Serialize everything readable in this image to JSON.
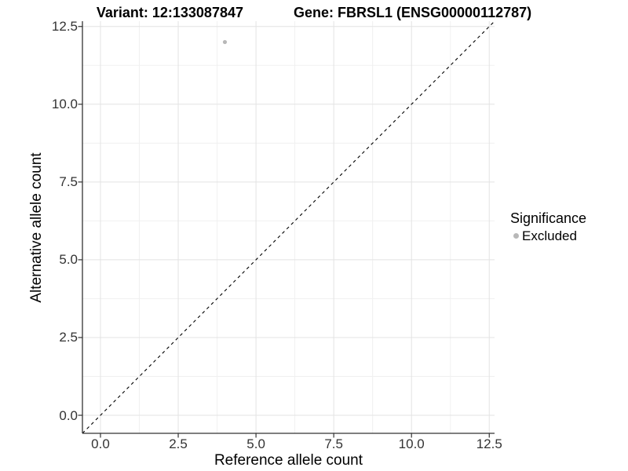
{
  "chart_data": {
    "type": "scatter",
    "title_left": "Variant: 12:133087847",
    "title_right": "Gene: FBRSL1 (ENSG00000112787)",
    "xlabel": "Reference allele count",
    "ylabel": "Alternative allele count",
    "xlim": [
      -0.58,
      12.67
    ],
    "ylim": [
      -0.58,
      12.67
    ],
    "x_ticks": {
      "values": [
        0,
        2.5,
        5,
        7.5,
        10,
        12.5
      ],
      "labels": [
        "0.0",
        "2.5",
        "5.0",
        "7.5",
        "10.0",
        "12.5"
      ]
    },
    "y_ticks": {
      "values": [
        0,
        2.5,
        5,
        7.5,
        10,
        12.5
      ],
      "labels": [
        "0.0",
        "2.5",
        "5.0",
        "7.5",
        "10.0",
        "12.5"
      ]
    },
    "grid": "major+minor",
    "series": [
      {
        "name": "Excluded",
        "color": "#b8b8b8",
        "points": [
          {
            "x": 4,
            "y": 12
          }
        ]
      }
    ],
    "abline": {
      "slope": 1,
      "intercept": 0,
      "line_style": "dashed",
      "color": "#000000"
    },
    "legend": {
      "title": "Significance",
      "position": "right",
      "entries": [
        {
          "label": "Excluded",
          "color": "#b8b8b8",
          "marker": "circle"
        }
      ]
    },
    "colors": {
      "background": "#ffffff",
      "grid_major": "#e3e3e3",
      "grid_minor": "#f0f0f0",
      "axis": "#333333",
      "tick_text": "#333333"
    }
  }
}
